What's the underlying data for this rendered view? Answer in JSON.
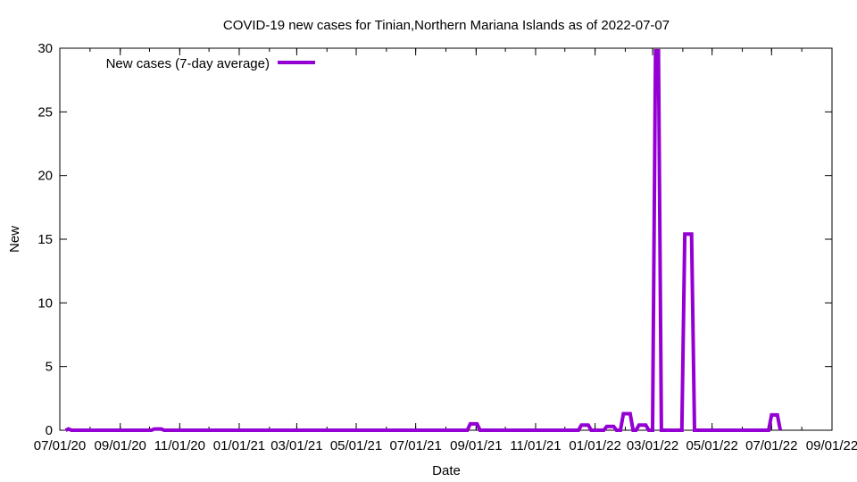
{
  "chart_data": {
    "type": "line",
    "title": "COVID-19 new cases for Tinian,Northern Mariana Islands as of 2022-07-07",
    "xlabel": "Date",
    "ylabel": "New",
    "xlim": [
      "2020-07-01",
      "2022-09-01"
    ],
    "ylim": [
      0,
      30
    ],
    "grid": false,
    "legend_position": "top-left",
    "x_tick_labels": [
      "07/01/20",
      "09/01/20",
      "11/01/20",
      "01/01/21",
      "03/01/21",
      "05/01/21",
      "07/01/21",
      "09/01/21",
      "11/01/21",
      "01/01/22",
      "03/01/22",
      "05/01/22",
      "07/01/22",
      "09/01/22"
    ],
    "x_tick_dates": [
      "2020-07-01",
      "2020-09-01",
      "2020-11-01",
      "2021-01-01",
      "2021-03-01",
      "2021-05-01",
      "2021-07-01",
      "2021-09-01",
      "2021-11-01",
      "2022-01-01",
      "2022-03-01",
      "2022-05-01",
      "2022-07-01",
      "2022-09-01"
    ],
    "y_ticks": [
      0,
      5,
      10,
      15,
      20,
      25,
      30
    ],
    "series": [
      {
        "name": "New cases (7-day average)",
        "color": "#9400d3",
        "x": [
          "2020-07-07",
          "2020-07-10",
          "2020-07-13",
          "2020-10-03",
          "2020-10-06",
          "2020-10-13",
          "2020-10-16",
          "2021-08-23",
          "2021-08-26",
          "2021-09-02",
          "2021-09-05",
          "2021-12-15",
          "2021-12-18",
          "2021-12-25",
          "2021-12-28",
          "2022-01-10",
          "2022-01-13",
          "2022-01-20",
          "2022-01-23",
          "2022-01-27",
          "2022-01-30",
          "2022-02-06",
          "2022-02-09",
          "2022-02-12",
          "2022-02-15",
          "2022-02-22",
          "2022-02-25",
          "2022-03-01",
          "2022-03-04",
          "2022-03-07",
          "2022-03-10",
          "2022-03-31",
          "2022-04-03",
          "2022-04-10",
          "2022-04-13",
          "2022-06-28",
          "2022-07-01",
          "2022-07-07",
          "2022-07-10"
        ],
        "y": [
          0,
          0.1,
          0,
          0,
          0.1,
          0.1,
          0,
          0,
          0.5,
          0.5,
          0,
          0,
          0.4,
          0.4,
          0,
          0,
          0.3,
          0.3,
          0,
          0,
          1.3,
          1.3,
          0,
          0,
          0.4,
          0.4,
          0,
          0,
          29.8,
          29.8,
          0,
          0,
          15.4,
          15.4,
          0,
          0,
          1.2,
          1.2,
          0
        ]
      }
    ]
  }
}
